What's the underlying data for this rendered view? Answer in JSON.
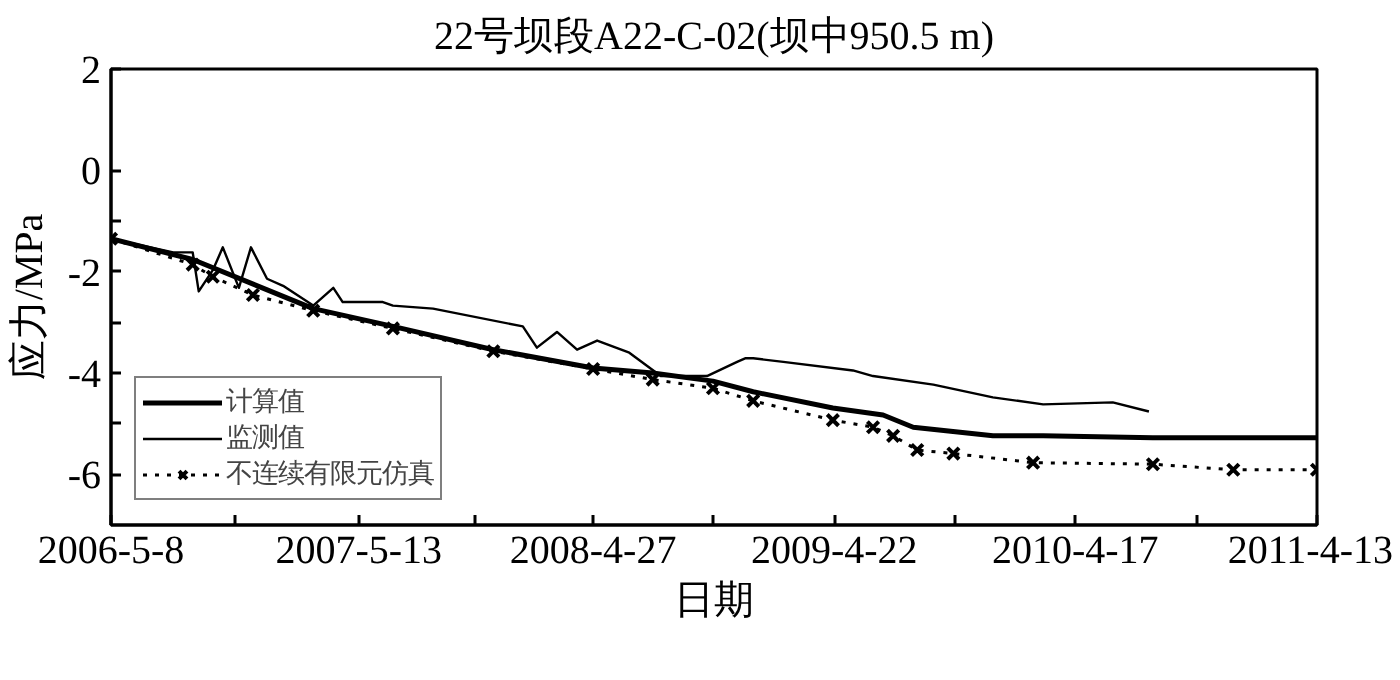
{
  "chart_data": {
    "type": "line",
    "title": "22号坝段A22-C-02(坝中950.5 m)",
    "xlabel": "日期",
    "ylabel": "应力/MPa",
    "xlim": [
      "2006-05-08",
      "2011-04-13"
    ],
    "xticks": [
      {
        "value": "2006-05-08",
        "label": "2006-5-8"
      },
      {
        "value": "2006-11-09",
        "label": null
      },
      {
        "value": "2007-05-13",
        "label": "2007-5-13"
      },
      {
        "value": "2007-11-04",
        "label": null
      },
      {
        "value": "2008-04-27",
        "label": "2008-4-27"
      },
      {
        "value": "2008-10-24",
        "label": null
      },
      {
        "value": "2009-04-22",
        "label": "2009-4-22"
      },
      {
        "value": "2009-10-19",
        "label": null
      },
      {
        "value": "2010-04-17",
        "label": "2010-4-17"
      },
      {
        "value": "2010-10-15",
        "label": null
      },
      {
        "value": "2011-04-13",
        "label": "2011-4-13"
      }
    ],
    "ylim": [
      -7,
      2
    ],
    "yticks": [
      -6,
      {
        "value": -5,
        "label": null
      },
      -4,
      {
        "value": -3,
        "label": null
      },
      -2,
      {
        "value": -1,
        "label": null
      },
      0,
      2
    ],
    "grid": false,
    "legend": "bottom left",
    "series": [
      {
        "name": "计算值",
        "color": "#000000",
        "line_style": "solid",
        "marker": "none",
        "x": [
          "2006-05-08",
          "2006-09-07",
          "2007-03-06",
          "2007-07-03",
          "2007-11-30",
          "2008-04-27",
          "2008-07-25",
          "2008-10-23",
          "2008-12-22",
          "2009-04-20",
          "2009-07-04",
          "2009-08-18",
          "2009-12-15",
          "2010-02-28",
          "2010-08-11",
          "2011-04-13"
        ],
        "values": [
          -1.35,
          -1.76,
          -2.73,
          -3.08,
          -3.54,
          -3.9,
          -4.0,
          -4.16,
          -4.37,
          -4.69,
          -4.83,
          -5.07,
          -5.24,
          -5.24,
          -5.28,
          -5.28
        ]
      },
      {
        "name": "监测值",
        "color": "#000000",
        "line_style": "solid",
        "marker": "none",
        "x": [
          "2006-05-08",
          "2006-08-09",
          "2006-09-07",
          "2006-09-16",
          "2006-10-07",
          "2006-10-22",
          "2006-11-15",
          "2006-12-03",
          "2006-12-27",
          "2007-01-20",
          "2007-03-06",
          "2007-04-05",
          "2007-04-19",
          "2007-06-18",
          "2007-07-03",
          "2007-09-01",
          "2008-01-13",
          "2008-02-03",
          "2008-03-04",
          "2008-04-03",
          "2008-05-03",
          "2008-06-20",
          "2008-08-06",
          "2008-10-14",
          "2008-11-28",
          "2008-12-10",
          "2008-12-22",
          "2009-02-05",
          "2009-05-20",
          "2009-06-19",
          "2009-09-17",
          "2009-12-15",
          "2010-02-28",
          "2010-06-12",
          "2010-08-05"
        ],
        "values": [
          -1.35,
          -1.62,
          -1.62,
          -2.39,
          -1.97,
          -1.52,
          -2.32,
          -1.52,
          -2.14,
          -2.28,
          -2.67,
          -2.32,
          -2.6,
          -2.6,
          -2.67,
          -2.73,
          -3.08,
          -3.5,
          -3.19,
          -3.54,
          -3.36,
          -3.6,
          -4.06,
          -4.06,
          -3.78,
          -3.71,
          -3.71,
          -3.78,
          -3.95,
          -4.06,
          -4.23,
          -4.48,
          -4.62,
          -4.58,
          -4.76
        ]
      },
      {
        "name": "不连续有限元仿真",
        "color": "#000000",
        "line_style": "dotted",
        "marker": "cross",
        "x": [
          "2006-05-08",
          "2006-09-07",
          "2006-10-07",
          "2006-12-06",
          "2007-03-06",
          "2007-07-03",
          "2007-11-30",
          "2008-04-27",
          "2008-07-25",
          "2008-10-23",
          "2008-12-22",
          "2009-04-20",
          "2009-06-19",
          "2009-07-19",
          "2009-08-24",
          "2009-10-17",
          "2010-02-13",
          "2010-08-11",
          "2010-12-09",
          "2011-04-13"
        ],
        "values": [
          -1.35,
          -1.86,
          -2.1,
          -2.46,
          -2.77,
          -3.12,
          -3.57,
          -3.92,
          -4.13,
          -4.3,
          -4.55,
          -4.93,
          -5.07,
          -5.24,
          -5.52,
          -5.59,
          -5.77,
          -5.8,
          -5.91,
          -5.91
        ]
      }
    ]
  }
}
